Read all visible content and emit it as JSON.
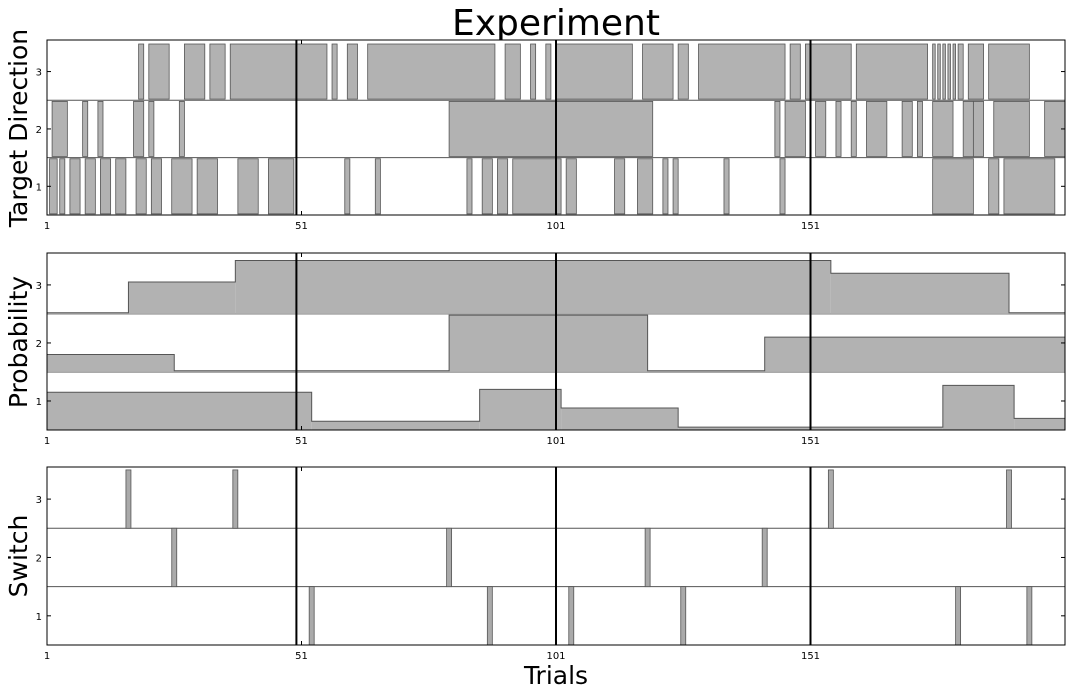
{
  "chart_data": {
    "type": "area",
    "title": "Experiment",
    "xlabel": "Trials",
    "colors": {
      "fill": "#b2b2b2",
      "edge": "#555555",
      "marker": "#000000",
      "switch_fill": "#aaaaaa"
    },
    "x_range": [
      1,
      201
    ],
    "x_ticks": [
      1,
      51,
      101,
      151
    ],
    "x_tick_labels": [
      "1",
      "51",
      "101",
      "151"
    ],
    "block_boundaries": [
      50,
      101,
      151
    ],
    "panels": [
      {
        "id": "target",
        "ylabel": "Target Direction",
        "type": "stripes",
        "y_ticks": [
          "1",
          "2",
          "3"
        ],
        "rows": [
          {
            "row": 1,
            "intervals": [
              [
                1.5,
                3
              ],
              [
                3.5,
                4.5
              ],
              [
                5.5,
                7.5
              ],
              [
                8.5,
                10.5
              ],
              [
                11.5,
                13.5
              ],
              [
                14.5,
                16.5
              ],
              [
                18.5,
                20.5
              ],
              [
                21.5,
                23.5
              ],
              [
                25.5,
                29.5
              ],
              [
                30.5,
                34.5
              ],
              [
                38.5,
                42.5
              ],
              [
                44.5,
                49.5
              ],
              [
                59.5,
                60.5
              ],
              [
                65.5,
                66.5
              ],
              [
                83.5,
                84.5
              ],
              [
                86.5,
                88.5
              ],
              [
                89.5,
                91.5
              ],
              [
                92.5,
                102
              ],
              [
                103,
                105
              ],
              [
                112.5,
                114.5
              ],
              [
                117,
                120
              ],
              [
                122,
                123
              ],
              [
                124,
                125
              ],
              [
                134,
                135
              ],
              [
                145,
                146
              ],
              [
                175,
                183
              ],
              [
                186,
                188
              ],
              [
                189,
                199
              ]
            ]
          },
          {
            "row": 2,
            "intervals": [
              [
                2,
                5
              ],
              [
                8,
                9
              ],
              [
                11,
                12
              ],
              [
                18,
                20
              ],
              [
                21,
                22
              ],
              [
                27,
                28
              ],
              [
                80,
                120
              ],
              [
                144,
                145
              ],
              [
                146,
                150
              ],
              [
                152,
                154
              ],
              [
                156,
                157
              ],
              [
                159,
                160
              ],
              [
                162,
                166
              ],
              [
                169,
                171
              ],
              [
                172,
                173
              ],
              [
                175,
                179
              ],
              [
                181,
                183
              ],
              [
                183,
                185
              ],
              [
                187,
                194
              ],
              [
                197,
                201
              ]
            ]
          },
          {
            "row": 3,
            "intervals": [
              [
                19,
                20
              ],
              [
                21,
                25
              ],
              [
                28,
                32
              ],
              [
                33,
                36
              ],
              [
                37,
                56
              ],
              [
                57,
                58
              ],
              [
                60,
                62
              ],
              [
                64,
                89
              ],
              [
                91,
                94
              ],
              [
                96,
                97
              ],
              [
                99,
                100
              ],
              [
                101,
                116
              ],
              [
                118,
                124
              ],
              [
                125,
                127
              ],
              [
                129,
                146
              ],
              [
                147,
                149
              ],
              [
                150,
                159
              ],
              [
                160,
                174
              ],
              [
                175,
                175.5
              ],
              [
                176,
                176.5
              ],
              [
                177,
                177.5
              ],
              [
                178,
                178.5
              ],
              [
                179,
                179.5
              ],
              [
                180,
                181
              ],
              [
                182,
                185
              ],
              [
                186,
                194
              ]
            ]
          }
        ]
      },
      {
        "id": "probability",
        "ylabel": "Probability",
        "type": "steps",
        "y_ticks": [
          "1",
          "2",
          "3"
        ],
        "rows": [
          {
            "row": 1,
            "steps": [
              [
                1,
                53,
                0.65
              ],
              [
                53,
                86,
                0.15
              ],
              [
                86,
                102,
                0.7
              ],
              [
                102,
                125,
                0.38
              ],
              [
                125,
                177,
                0.05
              ],
              [
                177,
                191,
                0.77
              ],
              [
                191,
                201,
                0.2
              ]
            ]
          },
          {
            "row": 2,
            "steps": [
              [
                1,
                26,
                0.3
              ],
              [
                26,
                80,
                0.02
              ],
              [
                80,
                119,
                0.98
              ],
              [
                119,
                142,
                0.02
              ],
              [
                142,
                201,
                0.6
              ]
            ]
          },
          {
            "row": 3,
            "steps": [
              [
                1,
                17,
                0.02
              ],
              [
                17,
                38,
                0.55
              ],
              [
                38,
                155,
                0.92
              ],
              [
                155,
                190,
                0.7
              ],
              [
                190,
                201,
                0.02
              ]
            ]
          }
        ]
      },
      {
        "id": "switch",
        "ylabel": "Switch",
        "type": "spikes",
        "y_ticks": [
          "1",
          "2",
          "3"
        ],
        "rows": [
          {
            "row": 1,
            "spikes": [
              53,
              88,
              104,
              126,
              180,
              194
            ]
          },
          {
            "row": 2,
            "spikes": [
              26,
              80,
              119,
              142
            ]
          },
          {
            "row": 3,
            "spikes": [
              17,
              38,
              155,
              190
            ]
          }
        ]
      }
    ]
  }
}
